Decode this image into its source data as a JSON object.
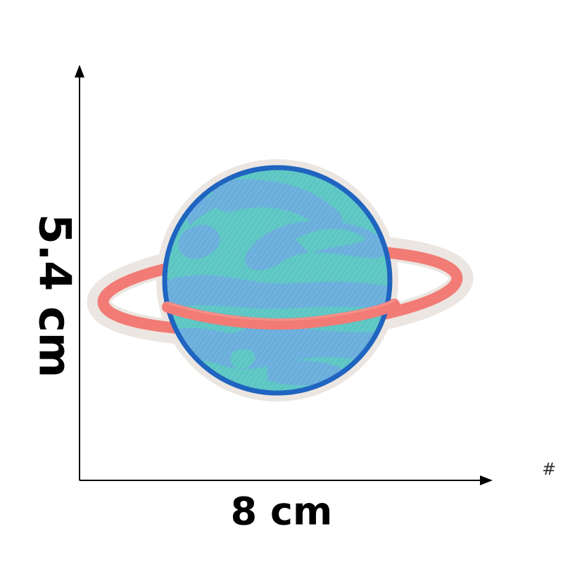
{
  "dimensions": {
    "height_label": "5.4 cm",
    "width_label": "8 cm"
  },
  "corner_mark": "#",
  "patch": {
    "subject": "planet-with-ring-embroidered-patch",
    "colors": {
      "planet_fill": "#5cc6c3",
      "planet_swirl": "#6aaedc",
      "planet_outline": "#1f64c0",
      "ring": "#f27b76",
      "ring_dark": "#e25d5c",
      "border": "#e9e4df"
    }
  }
}
